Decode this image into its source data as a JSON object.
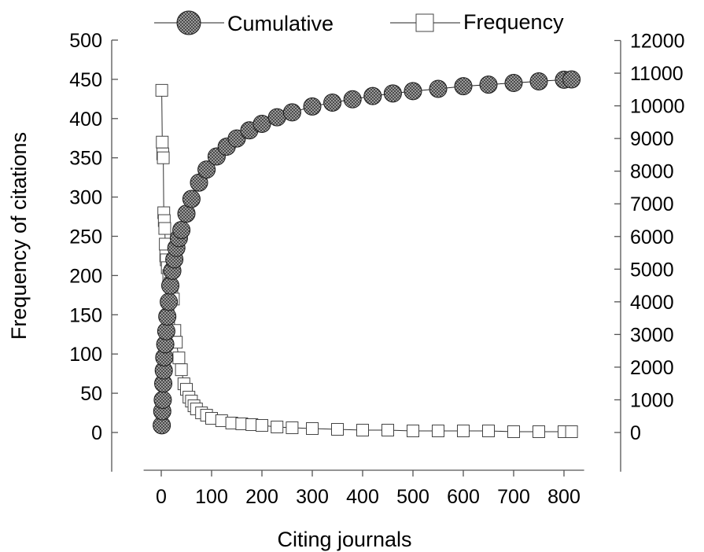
{
  "chart_data": {
    "type": "scatter",
    "xlabel": "Citing journals",
    "ylabel": "Frequency of citations",
    "y2label": "",
    "xlim": [
      -35,
      840
    ],
    "ylim": [
      -50,
      500
    ],
    "y2lim": [
      -1200,
      12000
    ],
    "x_ticks": [
      0,
      100,
      200,
      300,
      400,
      500,
      600,
      700,
      800
    ],
    "y_ticks": [
      0,
      50,
      100,
      150,
      200,
      250,
      300,
      350,
      400,
      450,
      500
    ],
    "y2_ticks": [
      0,
      1000,
      2000,
      3000,
      4000,
      5000,
      6000,
      7000,
      8000,
      9000,
      10000,
      11000,
      12000
    ],
    "legend_position": "top",
    "grid": false,
    "series": [
      {
        "name": "Cumulative",
        "axis": "right",
        "marker": "filled-circle-crosshatch",
        "x": [
          1,
          2,
          3,
          4,
          5,
          6,
          8,
          10,
          12,
          15,
          18,
          22,
          26,
          30,
          35,
          40,
          50,
          60,
          75,
          90,
          110,
          130,
          150,
          175,
          200,
          230,
          260,
          300,
          340,
          380,
          420,
          460,
          500,
          550,
          600,
          650,
          700,
          750,
          800,
          815
        ],
        "values": [
          220,
          650,
          1000,
          1500,
          1900,
          2300,
          2700,
          3100,
          3550,
          4000,
          4500,
          4950,
          5300,
          5650,
          5950,
          6200,
          6700,
          7150,
          7650,
          8050,
          8450,
          8750,
          9000,
          9250,
          9450,
          9650,
          9800,
          9980,
          10100,
          10200,
          10300,
          10380,
          10450,
          10520,
          10600,
          10650,
          10700,
          10750,
          10800,
          10810
        ]
      },
      {
        "name": "Frequency",
        "axis": "left",
        "marker": "open-square",
        "x": [
          1,
          2,
          3,
          4,
          5,
          6,
          7,
          8,
          9,
          10,
          12,
          15,
          18,
          21,
          24,
          27,
          30,
          35,
          40,
          45,
          50,
          55,
          60,
          65,
          70,
          80,
          90,
          100,
          120,
          140,
          160,
          180,
          200,
          230,
          260,
          300,
          350,
          400,
          450,
          500,
          550,
          600,
          650,
          700,
          750,
          800,
          815
        ],
        "values": [
          436,
          370,
          355,
          350,
          280,
          270,
          260,
          240,
          225,
          220,
          210,
          200,
          190,
          180,
          170,
          130,
          115,
          95,
          80,
          62,
          55,
          45,
          40,
          34,
          30,
          25,
          22,
          18,
          15,
          12,
          11,
          10,
          9,
          7,
          6,
          5,
          4,
          3,
          3,
          2,
          2,
          2,
          2,
          1,
          1,
          1,
          1
        ]
      }
    ]
  }
}
